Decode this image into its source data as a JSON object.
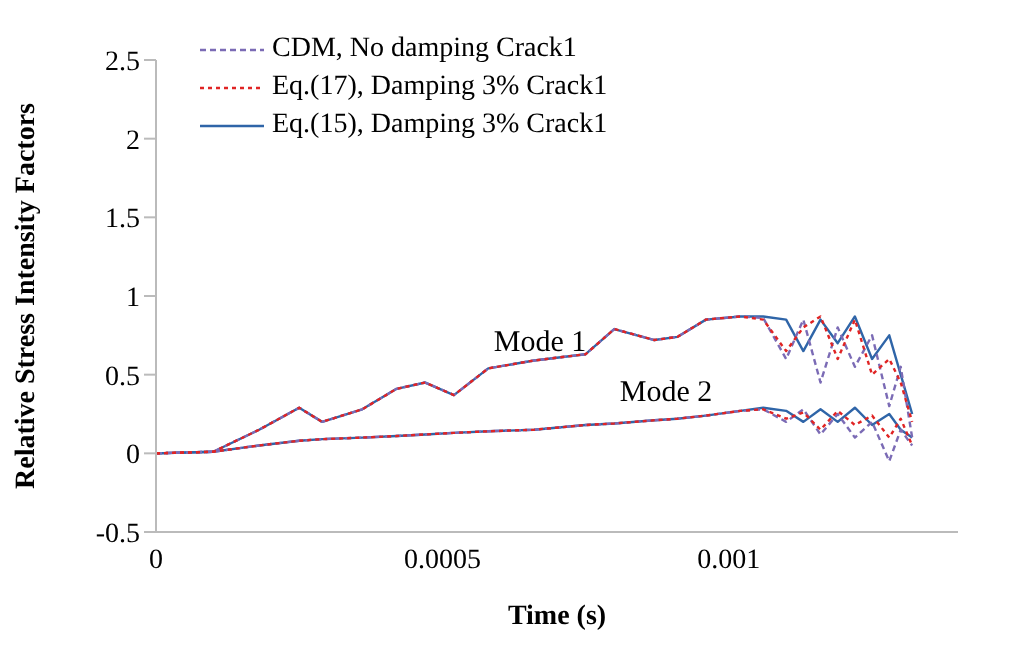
{
  "chart_data": {
    "type": "line",
    "xlabel": "Time (s)",
    "ylabel": "Relative Stress Intensity Factors",
    "x": [
      0,
      0.0001,
      0.00018,
      0.00025,
      0.00029,
      0.00036,
      0.00042,
      0.00047,
      0.00052,
      0.00058,
      0.00066,
      0.00075,
      0.0008,
      0.00087,
      0.00091,
      0.00096,
      0.00102,
      0.00106,
      0.0011,
      0.00113,
      0.00116,
      0.00119,
      0.00122,
      0.00125,
      0.00128,
      0.0013,
      0.00132
    ],
    "series": [
      {
        "name": "CDM, No damping Crack1",
        "color": "#7b6bb5",
        "line_style": "dashed",
        "values": [
          0,
          0.01,
          0.15,
          0.29,
          0.2,
          0.28,
          0.41,
          0.45,
          0.37,
          0.54,
          0.59,
          0.63,
          0.79,
          0.72,
          0.74,
          0.85,
          0.87,
          0.86,
          0.6,
          0.85,
          0.45,
          0.8,
          0.55,
          0.75,
          0.3,
          0.55,
          0.1
        ]
      },
      {
        "name": "Eq.(17), Damping 3% Crack1",
        "color": "#e02424",
        "line_style": "dotted",
        "values": [
          0,
          0.01,
          0.15,
          0.29,
          0.2,
          0.28,
          0.41,
          0.45,
          0.37,
          0.54,
          0.59,
          0.63,
          0.79,
          0.72,
          0.74,
          0.85,
          0.87,
          0.85,
          0.65,
          0.8,
          0.87,
          0.6,
          0.85,
          0.5,
          0.6,
          0.45,
          0.2
        ]
      },
      {
        "name": "Eq.(15), Damping 3% Crack1",
        "color": "#2f65a8",
        "line_style": "solid",
        "values": [
          0,
          0.01,
          0.15,
          0.29,
          0.2,
          0.28,
          0.41,
          0.45,
          0.37,
          0.54,
          0.59,
          0.63,
          0.79,
          0.72,
          0.74,
          0.85,
          0.87,
          0.87,
          0.85,
          0.65,
          0.85,
          0.7,
          0.87,
          0.6,
          0.75,
          0.5,
          0.25
        ]
      },
      {
        "color": "#7b6bb5",
        "line_style": "dashed",
        "values": [
          0,
          0.01,
          0.05,
          0.08,
          0.09,
          0.1,
          0.11,
          0.12,
          0.13,
          0.14,
          0.15,
          0.18,
          0.19,
          0.21,
          0.22,
          0.24,
          0.27,
          0.28,
          0.2,
          0.28,
          0.12,
          0.25,
          0.1,
          0.2,
          -0.05,
          0.15,
          0.05
        ]
      },
      {
        "color": "#e02424",
        "line_style": "dotted",
        "values": [
          0,
          0.01,
          0.05,
          0.08,
          0.09,
          0.1,
          0.11,
          0.12,
          0.13,
          0.14,
          0.15,
          0.18,
          0.19,
          0.21,
          0.22,
          0.24,
          0.27,
          0.28,
          0.22,
          0.26,
          0.15,
          0.27,
          0.18,
          0.24,
          0.1,
          0.22,
          0.05
        ]
      },
      {
        "color": "#2f65a8",
        "line_style": "solid",
        "values": [
          0,
          0.01,
          0.05,
          0.08,
          0.09,
          0.1,
          0.11,
          0.12,
          0.13,
          0.14,
          0.15,
          0.18,
          0.19,
          0.21,
          0.22,
          0.24,
          0.27,
          0.29,
          0.27,
          0.2,
          0.28,
          0.2,
          0.29,
          0.18,
          0.25,
          0.15,
          0.1
        ]
      }
    ],
    "annotations": [
      "Mode 1",
      "Mode 2"
    ],
    "xlim": [
      0,
      0.0014
    ],
    "xticks": [
      0,
      0.0005,
      0.001
    ],
    "ylim": [
      -0.5,
      2.5
    ],
    "yticks": [
      -0.5,
      0,
      0.5,
      1,
      1.5,
      2,
      2.5
    ],
    "grid": false,
    "legend": "top left",
    "marker": "none"
  }
}
